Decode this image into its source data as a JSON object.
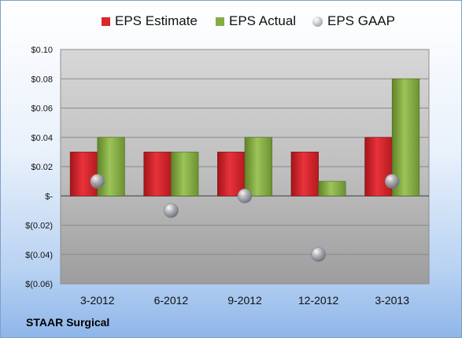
{
  "footer": {
    "company": "STAAR Surgical"
  },
  "chart_data": {
    "type": "bar",
    "title": "",
    "xlabel": "",
    "ylabel": "",
    "categories": [
      "3-2012",
      "6-2012",
      "9-2012",
      "12-2012",
      "3-2013"
    ],
    "series": [
      {
        "name": "EPS Estimate",
        "kind": "bar",
        "color": "#e0262e",
        "values": [
          0.03,
          0.03,
          0.03,
          0.03,
          0.04
        ]
      },
      {
        "name": "EPS Actual",
        "kind": "bar",
        "color": "#8ab04a",
        "values": [
          0.04,
          0.03,
          0.04,
          0.01,
          0.08
        ]
      },
      {
        "name": "EPS GAAP",
        "kind": "marker",
        "color": "#a9adb4",
        "values": [
          0.01,
          -0.01,
          0.0,
          -0.04,
          0.01
        ]
      }
    ],
    "ylim": [
      -0.06,
      0.1
    ],
    "yticks": [
      0.1,
      0.08,
      0.06,
      0.04,
      0.02,
      0,
      -0.02,
      -0.04,
      -0.06
    ],
    "ytick_labels": [
      "$0.10",
      "$0.08",
      "$0.06",
      "$0.04",
      "$0.02",
      "$-",
      "$(0.02)",
      "$(0.04)",
      "$(0.06)"
    ],
    "grid": true,
    "legend_position": "top"
  }
}
